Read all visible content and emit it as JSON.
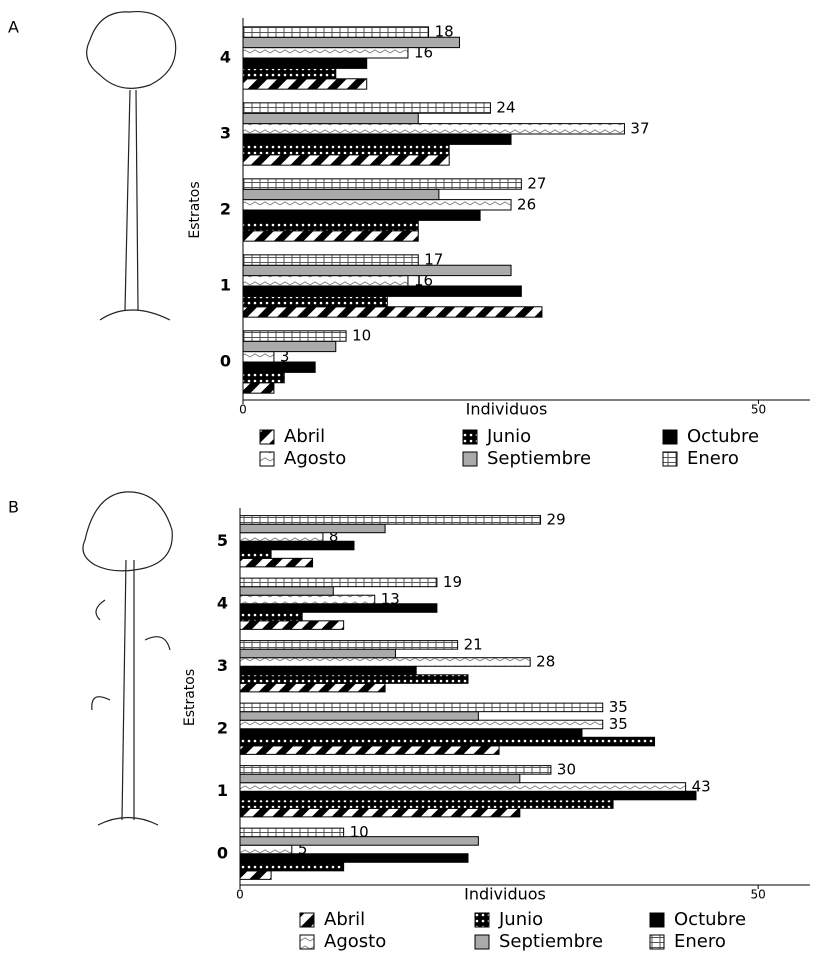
{
  "chart_data": [
    {
      "type": "bar",
      "orientation": "horizontal",
      "panel": "A",
      "xlabel": "Individuos",
      "ylabel": "Estratos",
      "categories": [
        "0",
        "1",
        "2",
        "3",
        "4"
      ],
      "xlim": [
        0,
        55
      ],
      "xticks": [
        0,
        50
      ],
      "series": [
        {
          "name": "Abril",
          "pattern": "diagonal",
          "values": [
            3,
            29,
            17,
            20,
            12
          ],
          "labels": false
        },
        {
          "name": "Junio",
          "pattern": "dots",
          "values": [
            4,
            14,
            17,
            20,
            9
          ],
          "labels": false
        },
        {
          "name": "Octubre",
          "pattern": "solid",
          "values": [
            7,
            27,
            23,
            26,
            12
          ],
          "labels": false
        },
        {
          "name": "Agosto",
          "pattern": "zigzag",
          "values": [
            3,
            16,
            26,
            37,
            16
          ],
          "labels": true
        },
        {
          "name": "Septiembre",
          "pattern": "gray",
          "values": [
            9,
            26,
            19,
            17,
            21
          ],
          "labels": false
        },
        {
          "name": "Enero",
          "pattern": "grid",
          "values": [
            10,
            17,
            27,
            24,
            18
          ],
          "labels": true
        }
      ]
    },
    {
      "type": "bar",
      "orientation": "horizontal",
      "panel": "B",
      "xlabel": "Individuos",
      "ylabel": "Estratos",
      "categories": [
        "0",
        "1",
        "2",
        "3",
        "4",
        "5"
      ],
      "xlim": [
        0,
        55
      ],
      "xticks": [
        0,
        50
      ],
      "series": [
        {
          "name": "Abril",
          "pattern": "diagonal",
          "values": [
            3,
            27,
            25,
            14,
            10,
            7
          ],
          "labels": false
        },
        {
          "name": "Junio",
          "pattern": "dots",
          "values": [
            10,
            36,
            40,
            22,
            6,
            3
          ],
          "labels": false
        },
        {
          "name": "Octubre",
          "pattern": "solid",
          "values": [
            22,
            44,
            33,
            17,
            19,
            11
          ],
          "labels": false
        },
        {
          "name": "Agosto",
          "pattern": "zigzag",
          "values": [
            5,
            43,
            35,
            28,
            13,
            8
          ],
          "labels": true
        },
        {
          "name": "Septiembre",
          "pattern": "gray",
          "values": [
            23,
            27,
            23,
            15,
            9,
            14
          ],
          "labels": false
        },
        {
          "name": "Enero",
          "pattern": "grid",
          "values": [
            10,
            30,
            35,
            21,
            19,
            29
          ],
          "labels": true
        }
      ]
    }
  ]
}
